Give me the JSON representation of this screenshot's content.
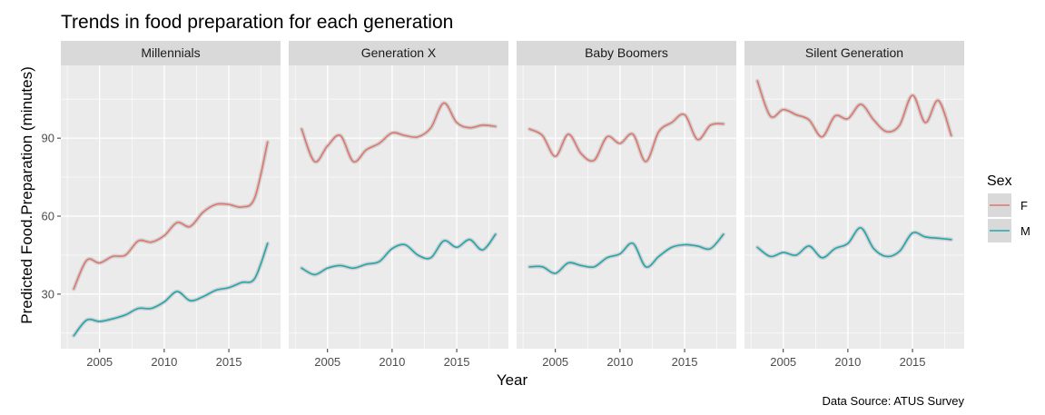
{
  "chart_data": {
    "type": "line",
    "title": "Trends in food preparation for each generation",
    "xlabel": "Year",
    "ylabel": "Predicted Food.Preparation (minutes)",
    "caption": "Data Source: ATUS Survey",
    "xlim": [
      2002,
      2019
    ],
    "ylim": [
      9,
      118
    ],
    "x_ticks": [
      2005,
      2010,
      2015
    ],
    "y_ticks": [
      30,
      60,
      90
    ],
    "grid": true,
    "legend": {
      "title": "Sex",
      "position": "right",
      "entries": [
        "F",
        "M"
      ]
    },
    "colors": {
      "F": "#e0766d",
      "M": "#1fa7ad",
      "ribbon": "#9a9a9a",
      "panel": "#ebebeb",
      "strip": "#d9d9d9",
      "grid": "#ffffff"
    },
    "x": [
      2003,
      2004,
      2005,
      2006,
      2007,
      2008,
      2009,
      2010,
      2011,
      2012,
      2013,
      2014,
      2015,
      2016,
      2017,
      2018
    ],
    "panels": [
      {
        "name": "Millennials",
        "series": [
          {
            "name": "F",
            "values": [
              32,
              43,
              42,
              44.5,
              45,
              50.5,
              50,
              52.5,
              57.5,
              56,
              61.5,
              64.5,
              64.5,
              63.5,
              67,
              88.5
            ]
          },
          {
            "name": "M",
            "values": [
              14,
              20,
              19.5,
              20.5,
              22,
              24.5,
              24.5,
              27,
              31,
              27.5,
              29,
              31.5,
              32.5,
              34.5,
              36,
              49.5
            ]
          }
        ]
      },
      {
        "name": "Generation X",
        "series": [
          {
            "name": "F",
            "values": [
              93.5,
              81,
              87,
              91,
              81,
              85.5,
              88,
              92,
              91,
              90.5,
              94,
              103.5,
              96,
              94,
              95,
              94.5
            ]
          },
          {
            "name": "M",
            "values": [
              40,
              37.5,
              40,
              41,
              40,
              41.5,
              42.5,
              47.5,
              49,
              45,
              44,
              50.5,
              48,
              51,
              47,
              53
            ]
          }
        ]
      },
      {
        "name": "Baby Boomers",
        "series": [
          {
            "name": "F",
            "values": [
              93.5,
              91,
              83,
              91.5,
              84,
              81.5,
              90.5,
              88,
              91.5,
              81,
              92.5,
              96,
              99,
              89.5,
              95,
              95.5
            ]
          },
          {
            "name": "M",
            "values": [
              40.5,
              40.5,
              38,
              42,
              41,
              40.5,
              44,
              45.5,
              49.5,
              40.5,
              44.5,
              48,
              49,
              48.5,
              47.5,
              53
            ]
          }
        ]
      },
      {
        "name": "Silent Generation",
        "series": [
          {
            "name": "F",
            "values": [
              112,
              98.5,
              101,
              99,
              97,
              90.5,
              98.5,
              97.5,
              103,
              97,
              92.5,
              95,
              106.5,
              96,
              104.5,
              91
            ]
          },
          {
            "name": "M",
            "values": [
              48,
              44.5,
              46,
              45,
              48.5,
              44,
              47.5,
              49.5,
              55.5,
              47.5,
              44.5,
              46.5,
              53.5,
              52,
              51.5,
              51
            ]
          }
        ]
      }
    ]
  }
}
